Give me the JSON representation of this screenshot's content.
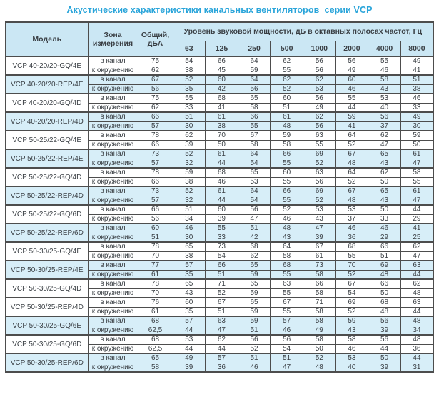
{
  "title": "Акустические характеристики канальных вентиляторов  серии VCP",
  "colors": {
    "title_color": "#2aa5da",
    "header_bg": "#cbe7f4",
    "row_bg": "#d7eef8",
    "border_color": "#4d4d4d",
    "text_color": "#3a3f44",
    "page_bg": "#ffffff"
  },
  "table": {
    "col_model": "Модель",
    "col_zone": "Зона измерения",
    "col_total": "Общий, дБА",
    "col_level": "Уровень звуковой мощности, дБ в октавных полосах частот, Гц",
    "frequencies": [
      "63",
      "125",
      "250",
      "500",
      "1000",
      "2000",
      "4000",
      "8000"
    ],
    "zone_in": "в канал",
    "zone_out": "к окружению",
    "models": [
      {
        "name": "VCP 40-20/20-GQ/4E",
        "shaded": false,
        "in_channel": {
          "total": "75",
          "levels": [
            54,
            66,
            64,
            62,
            56,
            56,
            55,
            49
          ]
        },
        "to_ambient": {
          "total": "62",
          "levels": [
            38,
            45,
            59,
            55,
            56,
            49,
            46,
            41
          ]
        }
      },
      {
        "name": "VCP 40-20/20-REP/4E",
        "shaded": true,
        "in_channel": {
          "total": "67",
          "levels": [
            52,
            60,
            64,
            62,
            62,
            60,
            58,
            51
          ]
        },
        "to_ambient": {
          "total": "56",
          "levels": [
            35,
            42,
            56,
            52,
            53,
            46,
            43,
            38
          ]
        }
      },
      {
        "name": "VCP 40-20/20-GQ/4D",
        "shaded": false,
        "in_channel": {
          "total": "75",
          "levels": [
            55,
            68,
            65,
            60,
            56,
            55,
            53,
            46
          ]
        },
        "to_ambient": {
          "total": "62",
          "levels": [
            33,
            41,
            58,
            51,
            49,
            44,
            40,
            33
          ]
        }
      },
      {
        "name": "VCP 40-20/20-REP/4D",
        "shaded": true,
        "in_channel": {
          "total": "66",
          "levels": [
            51,
            61,
            66,
            61,
            62,
            59,
            56,
            49
          ]
        },
        "to_ambient": {
          "total": "57",
          "levels": [
            30,
            38,
            55,
            48,
            56,
            41,
            37,
            30
          ]
        }
      },
      {
        "name": "VCP 50-25/22-GQ/4E",
        "shaded": false,
        "in_channel": {
          "total": "78",
          "levels": [
            62,
            70,
            67,
            59,
            63,
            64,
            62,
            59
          ]
        },
        "to_ambient": {
          "total": "66",
          "levels": [
            39,
            50,
            58,
            58,
            55,
            52,
            47,
            50
          ]
        }
      },
      {
        "name": "VCP 50-25/22-REP/4E",
        "shaded": true,
        "in_channel": {
          "total": "73",
          "levels": [
            52,
            61,
            64,
            66,
            69,
            67,
            65,
            61
          ]
        },
        "to_ambient": {
          "total": "57",
          "levels": [
            32,
            44,
            54,
            55,
            52,
            48,
            43,
            47
          ]
        }
      },
      {
        "name": "VCP 50-25/22-GQ/4D",
        "shaded": false,
        "in_channel": {
          "total": "78",
          "levels": [
            59,
            68,
            65,
            60,
            63,
            64,
            62,
            58
          ]
        },
        "to_ambient": {
          "total": "66",
          "levels": [
            38,
            46,
            53,
            55,
            56,
            52,
            50,
            55
          ]
        }
      },
      {
        "name": "VCP 50-25/22-REP/4D",
        "shaded": true,
        "in_channel": {
          "total": "73",
          "levels": [
            52,
            61,
            64,
            66,
            69,
            67,
            65,
            61
          ]
        },
        "to_ambient": {
          "total": "57",
          "levels": [
            32,
            44,
            54,
            55,
            52,
            48,
            43,
            47
          ]
        }
      },
      {
        "name": "VCP 50-25/22-GQ/6D",
        "shaded": false,
        "in_channel": {
          "total": "66",
          "levels": [
            51,
            60,
            56,
            52,
            53,
            53,
            50,
            44
          ]
        },
        "to_ambient": {
          "total": "56",
          "levels": [
            34,
            39,
            47,
            46,
            43,
            37,
            33,
            29
          ]
        }
      },
      {
        "name": "VCP 50-25/22-REP/6D",
        "shaded": true,
        "in_channel": {
          "total": "60",
          "levels": [
            46,
            55,
            51,
            48,
            47,
            46,
            46,
            41
          ]
        },
        "to_ambient": {
          "total": "51",
          "levels": [
            30,
            33,
            42,
            43,
            39,
            36,
            29,
            25
          ]
        }
      },
      {
        "name": "VCP 50-30/25-GQ/4E",
        "shaded": false,
        "in_channel": {
          "total": "78",
          "levels": [
            65,
            73,
            68,
            64,
            67,
            68,
            66,
            62
          ]
        },
        "to_ambient": {
          "total": "70",
          "levels": [
            38,
            54,
            62,
            58,
            61,
            55,
            51,
            47
          ]
        }
      },
      {
        "name": "VCP 50-30/25-REP/4E",
        "shaded": true,
        "in_channel": {
          "total": "77",
          "levels": [
            57,
            66,
            65,
            68,
            73,
            70,
            69,
            63
          ]
        },
        "to_ambient": {
          "total": "61",
          "levels": [
            35,
            51,
            59,
            55,
            58,
            52,
            48,
            44
          ]
        }
      },
      {
        "name": "VCP 50-30/25-GQ/4D",
        "shaded": false,
        "in_channel": {
          "total": "78",
          "levels": [
            65,
            71,
            65,
            63,
            66,
            67,
            66,
            62
          ]
        },
        "to_ambient": {
          "total": "70",
          "levels": [
            43,
            52,
            59,
            55,
            58,
            54,
            50,
            48
          ]
        }
      },
      {
        "name": "VCP 50-30/25-REP/4D",
        "shaded": false,
        "in_channel": {
          "total": "76",
          "levels": [
            60,
            67,
            65,
            67,
            71,
            69,
            68,
            63
          ]
        },
        "to_ambient": {
          "total": "61",
          "levels": [
            35,
            51,
            59,
            55,
            58,
            52,
            48,
            44
          ]
        }
      },
      {
        "name": "VCP 50-30/25-GQ/6E",
        "shaded": true,
        "in_channel": {
          "total": "68",
          "levels": [
            57,
            63,
            59,
            57,
            58,
            59,
            56,
            48
          ]
        },
        "to_ambient": {
          "total": "62,5",
          "levels": [
            44,
            47,
            51,
            46,
            49,
            43,
            39,
            34
          ]
        }
      },
      {
        "name": "VCP 50-30/25-GQ/6D",
        "shaded": false,
        "in_channel": {
          "total": "68",
          "levels": [
            53,
            62,
            56,
            56,
            58,
            58,
            56,
            48
          ]
        },
        "to_ambient": {
          "total": "62,5",
          "levels": [
            44,
            44,
            52,
            54,
            50,
            46,
            44,
            36
          ]
        }
      },
      {
        "name": "VCP 50-30/25-REP/6D",
        "shaded": true,
        "in_channel": {
          "total": "65",
          "levels": [
            49,
            57,
            51,
            51,
            52,
            53,
            50,
            44
          ]
        },
        "to_ambient": {
          "total": "58",
          "levels": [
            39,
            36,
            46,
            47,
            48,
            40,
            39,
            31
          ]
        }
      }
    ]
  }
}
